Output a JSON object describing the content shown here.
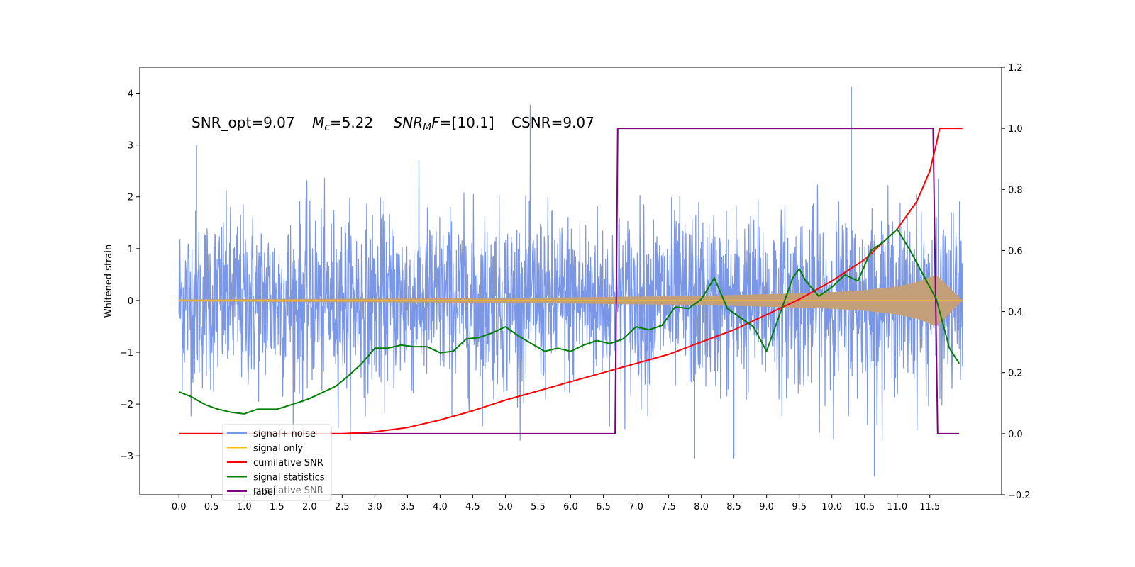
{
  "chart_data": {
    "type": "line",
    "title": "",
    "annotation": {
      "snr_opt": "SNR_opt=9.07",
      "mc_sym": "M",
      "mc_sub": "c",
      "mc_val": "=5.22",
      "snrmf_sym": "SNR",
      "snrmf_sub": "M",
      "snrmf_f": "F",
      "snrmf_val": "=[10.1]",
      "csnr": "CSNR=9.07"
    },
    "ylabel_left": "Whitened strain",
    "xlim": [
      -0.6,
      12.6
    ],
    "ylim_left": [
      -3.75,
      4.5
    ],
    "ylim_right": [
      -0.2,
      1.2
    ],
    "x_ticks": [
      0.0,
      0.5,
      1.0,
      1.5,
      2.0,
      2.5,
      3.0,
      3.5,
      4.0,
      4.5,
      5.0,
      5.5,
      6.0,
      6.5,
      7.0,
      7.5,
      8.0,
      8.5,
      9.0,
      9.5,
      10.0,
      10.5,
      11.0,
      11.5
    ],
    "x_tick_labels": [
      "0.0",
      "0.5",
      "1.0",
      "1.5",
      "2.0",
      "2.5",
      "3.0",
      "3.5",
      "4.0",
      "4.5",
      "5.0",
      "5.5",
      "6.0",
      "6.5",
      "7.0",
      "7.5",
      "8.0",
      "8.5",
      "9.0",
      "9.5",
      "10.0",
      "10.5",
      "11.0",
      "11.5"
    ],
    "y_left_ticks": [
      -3,
      -2,
      -1,
      0,
      1,
      2,
      3,
      4
    ],
    "y_left_tick_labels": [
      "−3",
      "−2",
      "−1",
      "0",
      "1",
      "2",
      "3",
      "4"
    ],
    "y_right_ticks": [
      -0.2,
      0.0,
      0.2,
      0.4,
      0.6,
      0.8,
      1.0,
      1.2
    ],
    "y_right_tick_labels": [
      "−0.2",
      "0.0",
      "0.2",
      "0.4",
      "0.6",
      "0.8",
      "1.0",
      "1.2"
    ],
    "series": [
      {
        "name": "signal+ noise",
        "axis": "left",
        "color": "#7a96e6",
        "description_values": "band of noise between about -2 and +2, x from 0.0 to 12.0",
        "envelope_x": [
          0.0,
          12.0
        ],
        "envelope_low": -2.0,
        "envelope_high": 2.0,
        "peaks": [
          {
            "x": 0.27,
            "y": 3.0
          },
          {
            "x": 5.38,
            "y": 3.78
          },
          {
            "x": 10.3,
            "y": 4.12
          },
          {
            "x": 10.65,
            "y": -3.4
          },
          {
            "x": 8.5,
            "y": -3.05
          },
          {
            "x": 7.9,
            "y": -3.05
          }
        ]
      },
      {
        "name": "signal only",
        "axis": "left",
        "color": "#ffc107",
        "fill_color": "#c4a07a",
        "x": [
          0.0,
          2.0,
          4.0,
          6.0,
          8.0,
          9.0,
          10.0,
          10.5,
          11.0,
          11.3,
          11.5,
          11.6,
          12.0
        ],
        "amplitude": [
          0.02,
          0.03,
          0.04,
          0.06,
          0.09,
          0.12,
          0.16,
          0.2,
          0.27,
          0.35,
          0.45,
          0.5,
          0.0
        ]
      },
      {
        "name": "cumilative SNR",
        "axis": "right",
        "color": "#ff0000",
        "x": [
          0.0,
          2.5,
          3.0,
          3.5,
          4.0,
          4.5,
          5.0,
          5.5,
          6.0,
          6.5,
          7.0,
          7.5,
          8.0,
          8.5,
          9.0,
          9.5,
          10.0,
          10.5,
          11.0,
          11.3,
          11.5,
          11.6,
          11.65,
          12.0
        ],
        "y": [
          0.0,
          0.0,
          0.006,
          0.02,
          0.045,
          0.075,
          0.11,
          0.14,
          0.17,
          0.2,
          0.23,
          0.26,
          0.3,
          0.34,
          0.39,
          0.44,
          0.5,
          0.57,
          0.67,
          0.76,
          0.86,
          0.95,
          1.0,
          1.0
        ]
      },
      {
        "name": "signal statistics",
        "axis": "right",
        "color": "#008000",
        "x": [
          0.0,
          0.2,
          0.4,
          0.6,
          0.8,
          1.0,
          1.2,
          1.5,
          1.8,
          2.0,
          2.2,
          2.4,
          2.6,
          2.8,
          3.0,
          3.2,
          3.4,
          3.6,
          3.8,
          4.0,
          4.2,
          4.4,
          4.6,
          4.8,
          5.0,
          5.2,
          5.4,
          5.6,
          5.8,
          6.0,
          6.2,
          6.4,
          6.6,
          6.8,
          7.0,
          7.2,
          7.4,
          7.6,
          7.8,
          8.0,
          8.2,
          8.4,
          8.6,
          8.8,
          9.0,
          9.1,
          9.2,
          9.3,
          9.4,
          9.5,
          9.6,
          9.8,
          10.0,
          10.2,
          10.4,
          10.6,
          10.8,
          11.0,
          11.2,
          11.4,
          11.6,
          11.8,
          11.95
        ],
        "y": [
          0.137,
          0.12,
          0.095,
          0.08,
          0.07,
          0.065,
          0.08,
          0.08,
          0.1,
          0.115,
          0.135,
          0.155,
          0.19,
          0.23,
          0.28,
          0.28,
          0.29,
          0.285,
          0.285,
          0.265,
          0.27,
          0.31,
          0.315,
          0.33,
          0.35,
          0.32,
          0.295,
          0.27,
          0.28,
          0.27,
          0.29,
          0.305,
          0.295,
          0.31,
          0.35,
          0.34,
          0.355,
          0.415,
          0.41,
          0.44,
          0.51,
          0.41,
          0.38,
          0.35,
          0.27,
          0.33,
          0.39,
          0.45,
          0.51,
          0.54,
          0.5,
          0.45,
          0.48,
          0.52,
          0.5,
          0.6,
          0.63,
          0.67,
          0.6,
          0.52,
          0.44,
          0.28,
          0.23
        ]
      },
      {
        "name": "label",
        "axis": "right",
        "color": "#800080",
        "x": [
          0.0,
          6.68,
          6.72,
          11.55,
          11.62,
          11.95
        ],
        "y": [
          0.0,
          0.0,
          1.0,
          1.0,
          0.0,
          0.0
        ]
      }
    ],
    "legend": {
      "placement": "lower-left",
      "entries": [
        "signal+ noise",
        "signal only",
        "cumilative SNR",
        "signal statistics",
        "label"
      ],
      "ghost_text": "cumilative SNR"
    },
    "grid": false
  }
}
